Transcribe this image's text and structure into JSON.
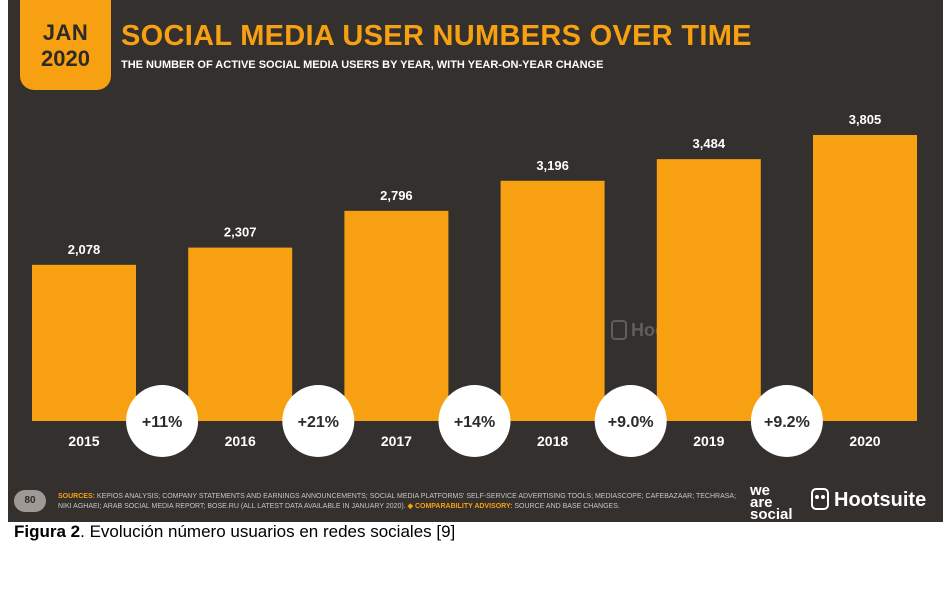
{
  "badge": {
    "month": "JAN",
    "year": "2020"
  },
  "title": "SOCIAL MEDIA USER NUMBERS OVER TIME",
  "subtitle": "THE NUMBER OF ACTIVE SOCIAL MEDIA USERS BY YEAR, WITH YEAR-ON-YEAR CHANGE",
  "chart_data": {
    "type": "bar",
    "categories": [
      "2015",
      "2016",
      "2017",
      "2018",
      "2019",
      "2020"
    ],
    "values": [
      2078,
      2307,
      2796,
      3196,
      3484,
      3805
    ],
    "value_labels": [
      "2,078",
      "2,307",
      "2,796",
      "3,196",
      "3,484",
      "3,805"
    ],
    "changes": [
      "+11%",
      "+21%",
      "+14%",
      "+9.0%",
      "+9.2%"
    ],
    "ylim": [
      0,
      3900
    ],
    "grid": false,
    "bar_color": "#f7a011",
    "background_color": "#34302d"
  },
  "watermark": {
    "we": "we are social",
    "hootsuite": "Hootsuite"
  },
  "footer": {
    "page_number": "80",
    "sources_label": "SOURCES:",
    "sources_text": "KEPIOS ANALYSIS; COMPANY STATEMENTS AND EARNINGS ANNOUNCEMENTS; SOCIAL MEDIA PLATFORMS' SELF-SERVICE ADVERTISING TOOLS; MEDIASCOPE; CAFEBAZAAR; TECHRASA; NIKI AGHAEI; ARAB SOCIAL MEDIA REPORT; BOSE.RU (ALL LATEST DATA AVAILABLE IN JANUARY 2020).",
    "advisory_label": "◆ COMPARABILITY ADVISORY:",
    "advisory_text": "SOURCE AND BASE CHANGES.",
    "logo_we": [
      "we",
      "are",
      "social"
    ],
    "logo_hootsuite": "Hootsuite"
  },
  "caption": {
    "label": "Figura 2",
    "text": ". Evolución número usuarios en redes sociales [9]"
  },
  "colors": {
    "accent": "#f7a011",
    "panel": "#34302d",
    "text_light": "#ffffff"
  }
}
